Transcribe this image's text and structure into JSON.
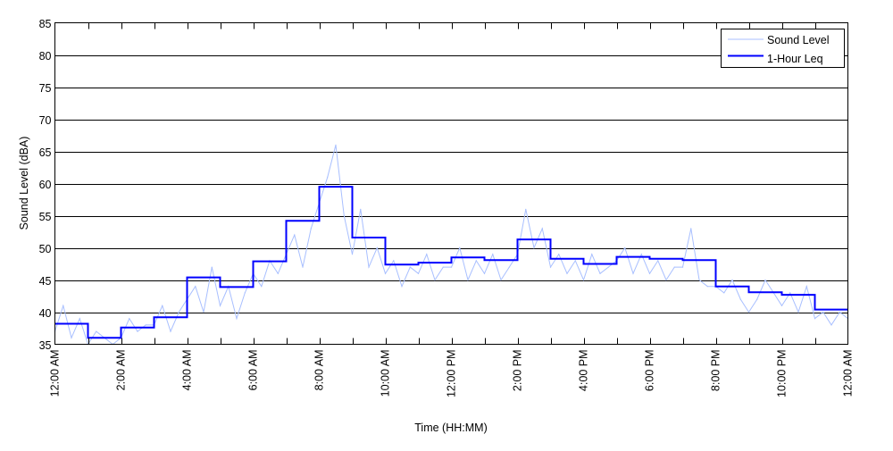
{
  "chart_data": {
    "type": "line",
    "title": "",
    "xlabel": "Time (HH:MM)",
    "ylabel": "Sound Level (dBA)",
    "ylim": [
      35,
      85
    ],
    "yticks": [
      35,
      40,
      45,
      50,
      55,
      60,
      65,
      70,
      75,
      80,
      85
    ],
    "xlim_hours": [
      0,
      24
    ],
    "xtick_labels": [
      "12:00 AM",
      "2:00 AM",
      "4:00 AM",
      "6:00 AM",
      "8:00 AM",
      "10:00 AM",
      "12:00 PM",
      "2:00 PM",
      "4:00 PM",
      "6:00 PM",
      "8:00 PM",
      "10:00 PM",
      "12:00 AM"
    ],
    "grid": "horizontal",
    "legend_position": "top-right",
    "series": [
      {
        "name": "Sound Level",
        "color": "#a8bfff",
        "sample_interval_minutes": 15,
        "values": [
          37,
          41,
          36,
          39,
          35,
          37,
          36,
          35,
          36,
          39,
          37,
          38,
          38,
          41,
          37,
          40,
          42,
          44,
          40,
          47,
          41,
          44,
          39,
          43,
          46,
          44,
          48,
          46,
          49,
          52,
          47,
          53,
          57,
          61,
          66,
          55,
          49,
          56,
          47,
          50,
          46,
          48,
          44,
          47,
          46,
          49,
          45,
          47,
          47,
          50,
          45,
          48,
          46,
          49,
          45,
          47,
          49,
          56,
          50,
          53,
          47,
          49,
          46,
          48,
          45,
          49,
          46,
          47,
          48,
          50,
          46,
          49,
          46,
          48,
          45,
          47,
          47,
          53,
          45,
          44,
          44,
          43,
          45,
          42,
          40,
          42,
          45,
          43,
          41,
          43,
          40,
          44,
          39,
          40,
          38,
          40,
          39
        ]
      },
      {
        "name": "1-Hour Leq",
        "color": "#0000ff",
        "step": "hourly",
        "values": [
          38.2,
          36.0,
          37.6,
          39.2,
          45.4,
          43.9,
          47.9,
          54.2,
          59.5,
          51.6,
          47.4,
          47.7,
          48.5,
          48.1,
          51.3,
          48.3,
          47.5,
          48.6,
          48.3,
          48.1,
          44.0,
          43.1,
          42.7,
          40.4
        ]
      }
    ]
  }
}
